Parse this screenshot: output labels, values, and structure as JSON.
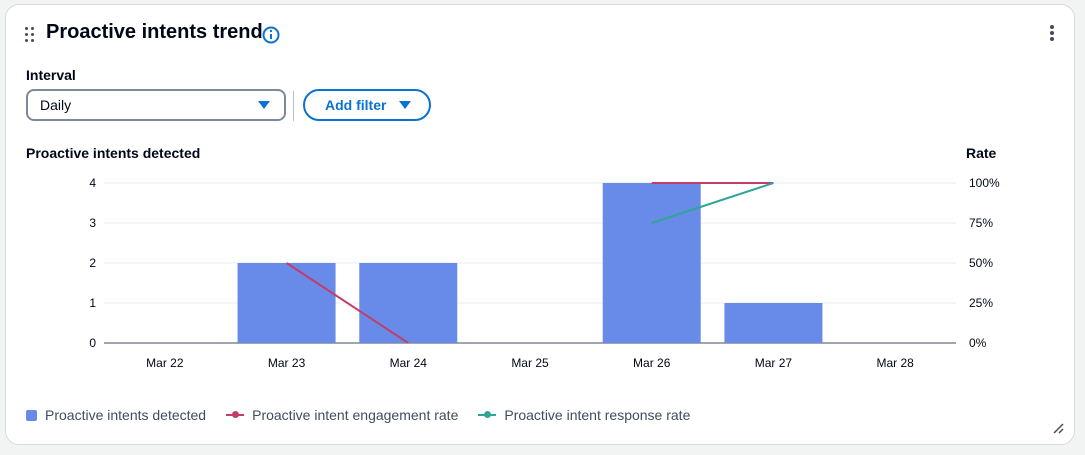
{
  "widget": {
    "title": "Proactive intents trend",
    "info_icon": "info-icon",
    "menu_icon": "more-vertical-icon",
    "drag_icon": "drag-handle-icon",
    "resize_icon": "resize-handle-icon"
  },
  "controls": {
    "interval_label": "Interval",
    "interval_value": "Daily",
    "filter_label": "Add filter"
  },
  "colors": {
    "bar": "#688ae8",
    "engagement": "#c33d69",
    "response": "#2ea597",
    "accent": "#0972d3"
  },
  "chart_data": {
    "type": "bar",
    "ylabel": "Proactive intents detected",
    "y2label": "Rate",
    "categories": [
      "Mar 22",
      "Mar 23",
      "Mar 24",
      "Mar 25",
      "Mar 26",
      "Mar 27",
      "Mar 28"
    ],
    "ylim": [
      0,
      4
    ],
    "yticks": [
      0,
      1,
      2,
      3,
      4
    ],
    "y2lim": [
      0,
      100
    ],
    "y2ticks": [
      "0%",
      "25%",
      "50%",
      "75%",
      "100%"
    ],
    "grid": true,
    "legend_position": "bottom-left",
    "series": [
      {
        "name": "Proactive intents detected",
        "type": "bar",
        "axis": "left",
        "values": [
          0,
          2,
          2,
          0,
          4,
          1,
          0
        ]
      },
      {
        "name": "Proactive intent engagement rate",
        "type": "line",
        "axis": "right",
        "values": [
          null,
          50,
          0,
          null,
          100,
          100,
          null
        ]
      },
      {
        "name": "Proactive intent response rate",
        "type": "line",
        "axis": "right",
        "values": [
          null,
          null,
          null,
          null,
          75,
          100,
          null
        ]
      }
    ]
  }
}
